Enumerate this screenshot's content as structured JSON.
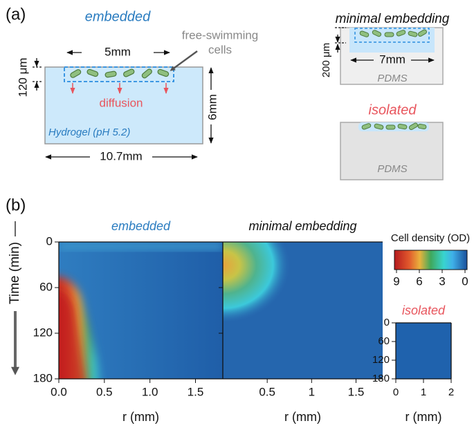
{
  "panel_a": {
    "label": "(a)",
    "embedded": {
      "title": "embedded",
      "width_label": "5mm",
      "cells_label": [
        "free-swimming",
        "cells"
      ],
      "depth_label": "120 μm",
      "diffusion_label": "diffusion",
      "gel_label": "Hydrogel (pH 5.2)",
      "height_label": "6mm",
      "outer_width_label": "10.7mm"
    },
    "minimal_embedding": {
      "title": "minimal embedding",
      "depth_label": "200 μm",
      "width_label": "7mm",
      "material_label": "PDMS"
    },
    "isolated": {
      "title": "isolated",
      "material_label": "PDMS"
    }
  },
  "panel_b": {
    "label": "(b)",
    "ylabel": "Time (min)",
    "plots": [
      {
        "title": "embedded",
        "xlabel": "r (mm)",
        "xlim": [
          0,
          1.8
        ],
        "xticks": [
          {
            "value": 0,
            "label": "0.0"
          },
          0.5,
          {
            "value": 1,
            "label": "1.0"
          },
          1.5
        ],
        "ylim": [
          0,
          180
        ],
        "yticks": [
          0,
          60,
          120,
          180
        ]
      },
      {
        "title": "minimal embedding",
        "xlabel": "r (mm)",
        "xlim": [
          0,
          1.8
        ],
        "xticks": [
          0.5,
          1,
          1.5
        ]
      },
      {
        "title": "isolated",
        "xlabel": "r (mm)",
        "xlim": [
          0,
          2
        ],
        "xticks": [
          0,
          1,
          2
        ],
        "ylim": [
          0,
          180
        ],
        "yticks": [
          0,
          60,
          120,
          180
        ]
      }
    ],
    "colorbar": {
      "label": "Cell density (OD)",
      "lim": [
        9,
        0
      ],
      "ticks": [
        9,
        6,
        3,
        0
      ]
    }
  }
}
